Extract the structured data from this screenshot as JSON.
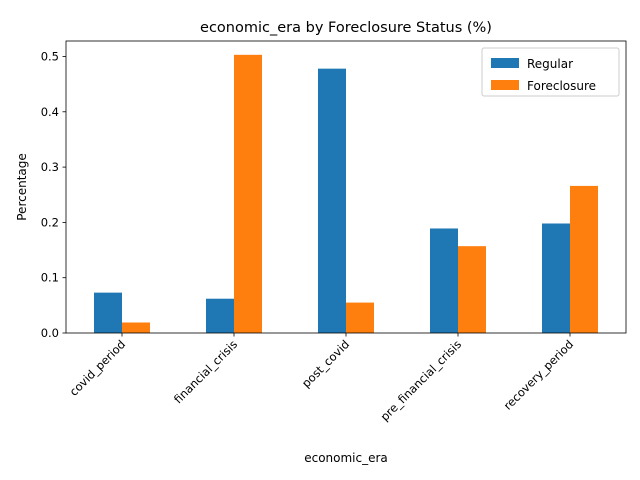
{
  "chart_data": {
    "type": "bar",
    "title": "economic_era by Foreclosure Status (%)",
    "xlabel": "economic_era",
    "ylabel": "Percentage",
    "categories": [
      "covid_period",
      "financial_crisis",
      "post_covid",
      "pre_financial_crisis",
      "recovery_period"
    ],
    "series": [
      {
        "name": "Regular",
        "color": "#1f77b4",
        "values": [
          0.073,
          0.062,
          0.478,
          0.189,
          0.198
        ]
      },
      {
        "name": "Foreclosure",
        "color": "#ff7f0e",
        "values": [
          0.019,
          0.503,
          0.055,
          0.157,
          0.266
        ]
      }
    ],
    "ylim": [
      0,
      0.528
    ],
    "yticks": [
      0.0,
      0.1,
      0.2,
      0.3,
      0.4,
      0.5
    ],
    "ytick_labels": [
      "0.0",
      "0.1",
      "0.2",
      "0.3",
      "0.4",
      "0.5"
    ],
    "grid": false,
    "legend_position": "top-right"
  }
}
